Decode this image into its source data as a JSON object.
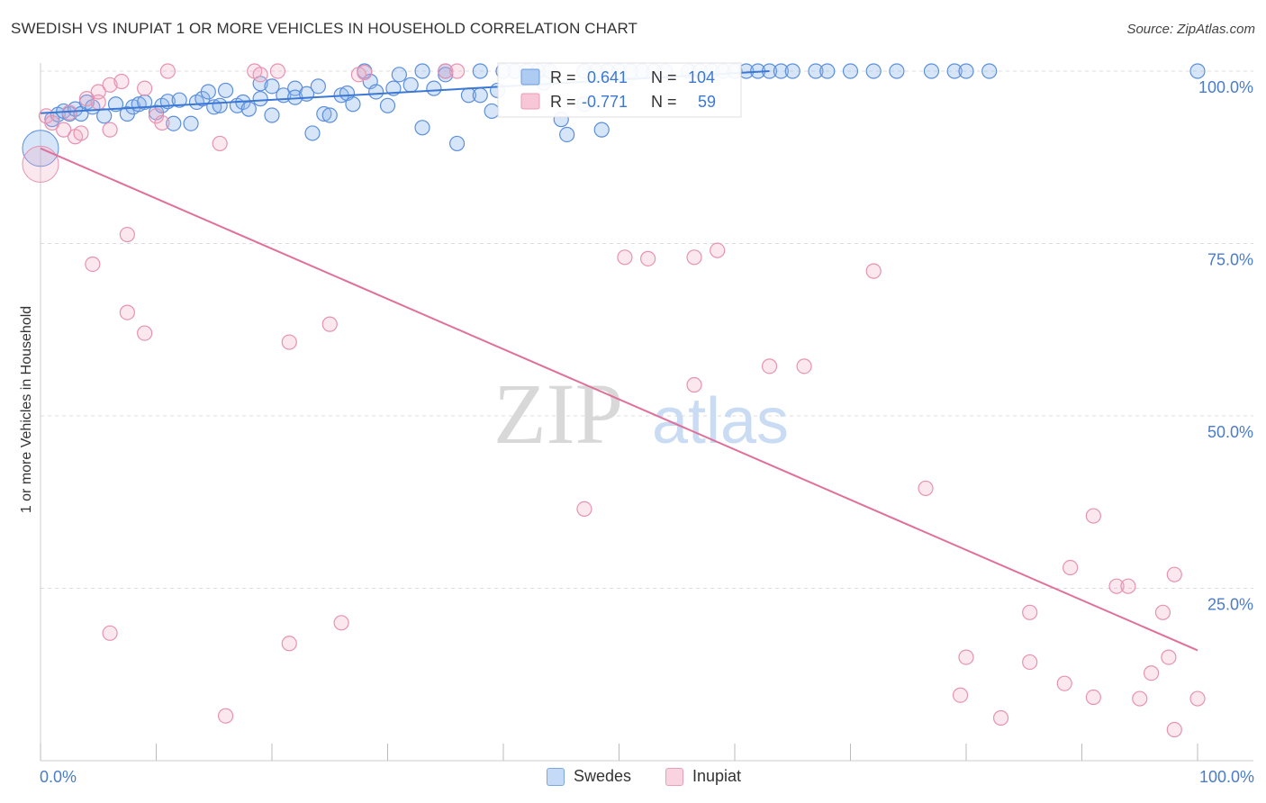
{
  "header": {
    "title": "SWEDISH VS INUPIAT 1 OR MORE VEHICLES IN HOUSEHOLD CORRELATION CHART",
    "source": "Source: ZipAtlas.com"
  },
  "watermark": {
    "zip": "ZIP",
    "atlas": "atlas"
  },
  "colors": {
    "blue": "#6b9be0",
    "blue_line": "#3a78d4",
    "pink": "#ea9bb6",
    "pink_line": "#e0709a",
    "axis_text": "#4a7cc9"
  },
  "legend": {
    "r_label": "R =",
    "n_label": "N =",
    "series": [
      {
        "name": "Swedes",
        "r": "0.641",
        "n": "104"
      },
      {
        "name": "Inupiat",
        "r": "-0.771",
        "n": "59"
      }
    ]
  },
  "chart_data": {
    "type": "scatter",
    "title": "SWEDISH VS INUPIAT 1 OR MORE VEHICLES IN HOUSEHOLD CORRELATION CHART",
    "xlabel": "",
    "ylabel": "1 or more Vehicles in Household",
    "xlim": [
      0,
      100
    ],
    "ylim": [
      0,
      100
    ],
    "x_tick_labels": [
      "0.0%",
      "100.0%"
    ],
    "y_ticks": [
      25,
      50,
      75,
      100
    ],
    "y_tick_labels": [
      "25.0%",
      "50.0%",
      "75.0%",
      "100.0%"
    ],
    "grid": true,
    "series": [
      {
        "name": "Swedes",
        "color": "#6b9be0",
        "trend": {
          "x": [
            0,
            63
          ],
          "y": [
            93.9,
            100.0
          ]
        },
        "points": [
          [
            1,
            93
          ],
          [
            1.5,
            93.7
          ],
          [
            2,
            94.2
          ],
          [
            2.5,
            93.8
          ],
          [
            3,
            94.5
          ],
          [
            3.5,
            93.8
          ],
          [
            4,
            95.5
          ],
          [
            4.5,
            94.8
          ],
          [
            5.5,
            93.5
          ],
          [
            6.5,
            95.2
          ],
          [
            7.5,
            93.8
          ],
          [
            8,
            94.8
          ],
          [
            8.5,
            95.2
          ],
          [
            9,
            95.5
          ],
          [
            10,
            94
          ],
          [
            10.5,
            95
          ],
          [
            11,
            95.6
          ],
          [
            11.5,
            92.4
          ],
          [
            12,
            95.8
          ],
          [
            13,
            92.4
          ],
          [
            13.5,
            95.5
          ],
          [
            14,
            96
          ],
          [
            14.5,
            97
          ],
          [
            15,
            94.8
          ],
          [
            15.5,
            95
          ],
          [
            16,
            97.2
          ],
          [
            17,
            95
          ],
          [
            17.5,
            95.5
          ],
          [
            18,
            94.5
          ],
          [
            19,
            96
          ],
          [
            19,
            98.2
          ],
          [
            20,
            97.8
          ],
          [
            20,
            93.6
          ],
          [
            21,
            96.5
          ],
          [
            22,
            97.5
          ],
          [
            22,
            96.2
          ],
          [
            23,
            96.7
          ],
          [
            23.5,
            91
          ],
          [
            24,
            97.8
          ],
          [
            24.5,
            93.8
          ],
          [
            25,
            93.6
          ],
          [
            26,
            96.5
          ],
          [
            26.5,
            96.8
          ],
          [
            27,
            95.2
          ],
          [
            28,
            100
          ],
          [
            28.5,
            98.5
          ],
          [
            29,
            97
          ],
          [
            30,
            95
          ],
          [
            30.5,
            97.5
          ],
          [
            31,
            99.5
          ],
          [
            32,
            98
          ],
          [
            33,
            91.8
          ],
          [
            33,
            100
          ],
          [
            34,
            97.5
          ],
          [
            35,
            100
          ],
          [
            35,
            99.5
          ],
          [
            36,
            89.5
          ],
          [
            37,
            96.5
          ],
          [
            38,
            96.5
          ],
          [
            38,
            100
          ],
          [
            39,
            94.2
          ],
          [
            39.5,
            97.2
          ],
          [
            40,
            100
          ],
          [
            41,
            100
          ],
          [
            42,
            100
          ],
          [
            43,
            100
          ],
          [
            43.5,
            98.3
          ],
          [
            44,
            100
          ],
          [
            45,
            93
          ],
          [
            45.5,
            90.8
          ],
          [
            47,
            100
          ],
          [
            47,
            95.2
          ],
          [
            48,
            100
          ],
          [
            48.5,
            91.5
          ],
          [
            49,
            100
          ],
          [
            50,
            100
          ],
          [
            51,
            100
          ],
          [
            52,
            100
          ],
          [
            53,
            100
          ],
          [
            54,
            100
          ],
          [
            56,
            100
          ],
          [
            57,
            100
          ],
          [
            58,
            100
          ],
          [
            59,
            100
          ],
          [
            60,
            100
          ],
          [
            61,
            100
          ],
          [
            62,
            100
          ],
          [
            63,
            100
          ],
          [
            64,
            100
          ],
          [
            65,
            100
          ],
          [
            67,
            100
          ],
          [
            68,
            100
          ],
          [
            70,
            100
          ],
          [
            72,
            100
          ],
          [
            74,
            100
          ],
          [
            77,
            100
          ],
          [
            79,
            100
          ],
          [
            80,
            100
          ],
          [
            82,
            100
          ],
          [
            100,
            100
          ]
        ],
        "large_points": [
          [
            0,
            88.8
          ]
        ]
      },
      {
        "name": "Inupiat",
        "color": "#ea9bb6",
        "trend": {
          "x": [
            0,
            100
          ],
          "y": [
            88.8,
            16.0
          ]
        },
        "points": [
          [
            0.5,
            93.5
          ],
          [
            1,
            92.5
          ],
          [
            2,
            91.5
          ],
          [
            2.5,
            94
          ],
          [
            3,
            90.5
          ],
          [
            3.5,
            91
          ],
          [
            4,
            96
          ],
          [
            5,
            95.5
          ],
          [
            6,
            91.5
          ],
          [
            5,
            97
          ],
          [
            6,
            98
          ],
          [
            7,
            98.5
          ],
          [
            9,
            97.5
          ],
          [
            10,
            93.5
          ],
          [
            10.5,
            92.5
          ],
          [
            11,
            100
          ],
          [
            18.5,
            100
          ],
          [
            19,
            99.5
          ],
          [
            20.5,
            100
          ],
          [
            27.5,
            99.5
          ],
          [
            28,
            99.8
          ],
          [
            35,
            100
          ],
          [
            36,
            100
          ],
          [
            15.5,
            89.5
          ],
          [
            4.5,
            72
          ],
          [
            7.5,
            76.3
          ],
          [
            7.5,
            65
          ],
          [
            9,
            62
          ],
          [
            21.5,
            60.7
          ],
          [
            25,
            63.3
          ],
          [
            50.5,
            73
          ],
          [
            52.5,
            72.8
          ],
          [
            56.5,
            73
          ],
          [
            58.5,
            74
          ],
          [
            72,
            71
          ],
          [
            63,
            57.2
          ],
          [
            66,
            57.2
          ],
          [
            56.5,
            54.5
          ],
          [
            47,
            36.5
          ],
          [
            76.5,
            39.5
          ],
          [
            91,
            35.5
          ],
          [
            89,
            28
          ],
          [
            93,
            25.3
          ],
          [
            94,
            25.3
          ],
          [
            98,
            27
          ],
          [
            6,
            18.5
          ],
          [
            21.5,
            17
          ],
          [
            26,
            20
          ],
          [
            16,
            6.5
          ],
          [
            85.5,
            21.5
          ],
          [
            97,
            21.5
          ],
          [
            80,
            15
          ],
          [
            85.5,
            14.3
          ],
          [
            96,
            12.7
          ],
          [
            97.5,
            15
          ],
          [
            79.5,
            9.5
          ],
          [
            83,
            6.2
          ],
          [
            88.5,
            11.2
          ],
          [
            91,
            9.2
          ],
          [
            95,
            9
          ],
          [
            98,
            4.5
          ],
          [
            100,
            9
          ]
        ],
        "large_points": [
          [
            0,
            86.5
          ]
        ]
      }
    ]
  }
}
